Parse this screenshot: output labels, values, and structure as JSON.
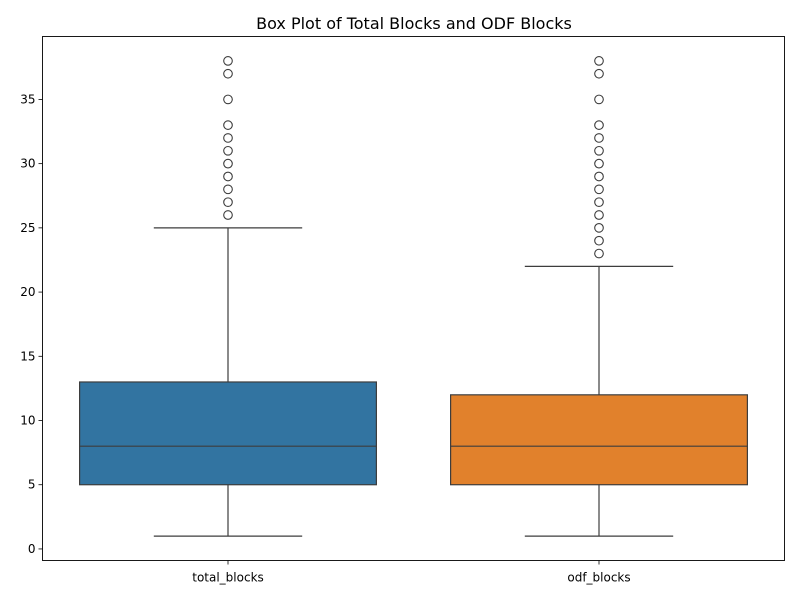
{
  "chart_data": {
    "type": "box",
    "title": "Box Plot of Total Blocks and ODF Blocks",
    "xlabel": "",
    "ylabel": "",
    "ylim": [
      -0.9,
      39.9
    ],
    "yticks": [
      0,
      5,
      10,
      15,
      20,
      25,
      30,
      35
    ],
    "grid": false,
    "legend": "none",
    "categories": [
      "total_blocks",
      "odf_blocks"
    ],
    "series": [
      {
        "category": "total_blocks",
        "color": "#3274a1",
        "whisker_low": 1,
        "q1": 5,
        "median": 8,
        "q3": 13,
        "whisker_high": 25,
        "outliers": [
          26,
          27,
          28,
          29,
          30,
          31,
          32,
          33,
          35,
          37,
          38
        ]
      },
      {
        "category": "odf_blocks",
        "color": "#e1812c",
        "whisker_low": 1,
        "q1": 5,
        "median": 8,
        "q3": 12,
        "whisker_high": 22,
        "outliers": [
          23,
          24,
          25,
          26,
          27,
          28,
          29,
          30,
          31,
          32,
          33,
          35,
          37,
          38
        ]
      }
    ]
  }
}
